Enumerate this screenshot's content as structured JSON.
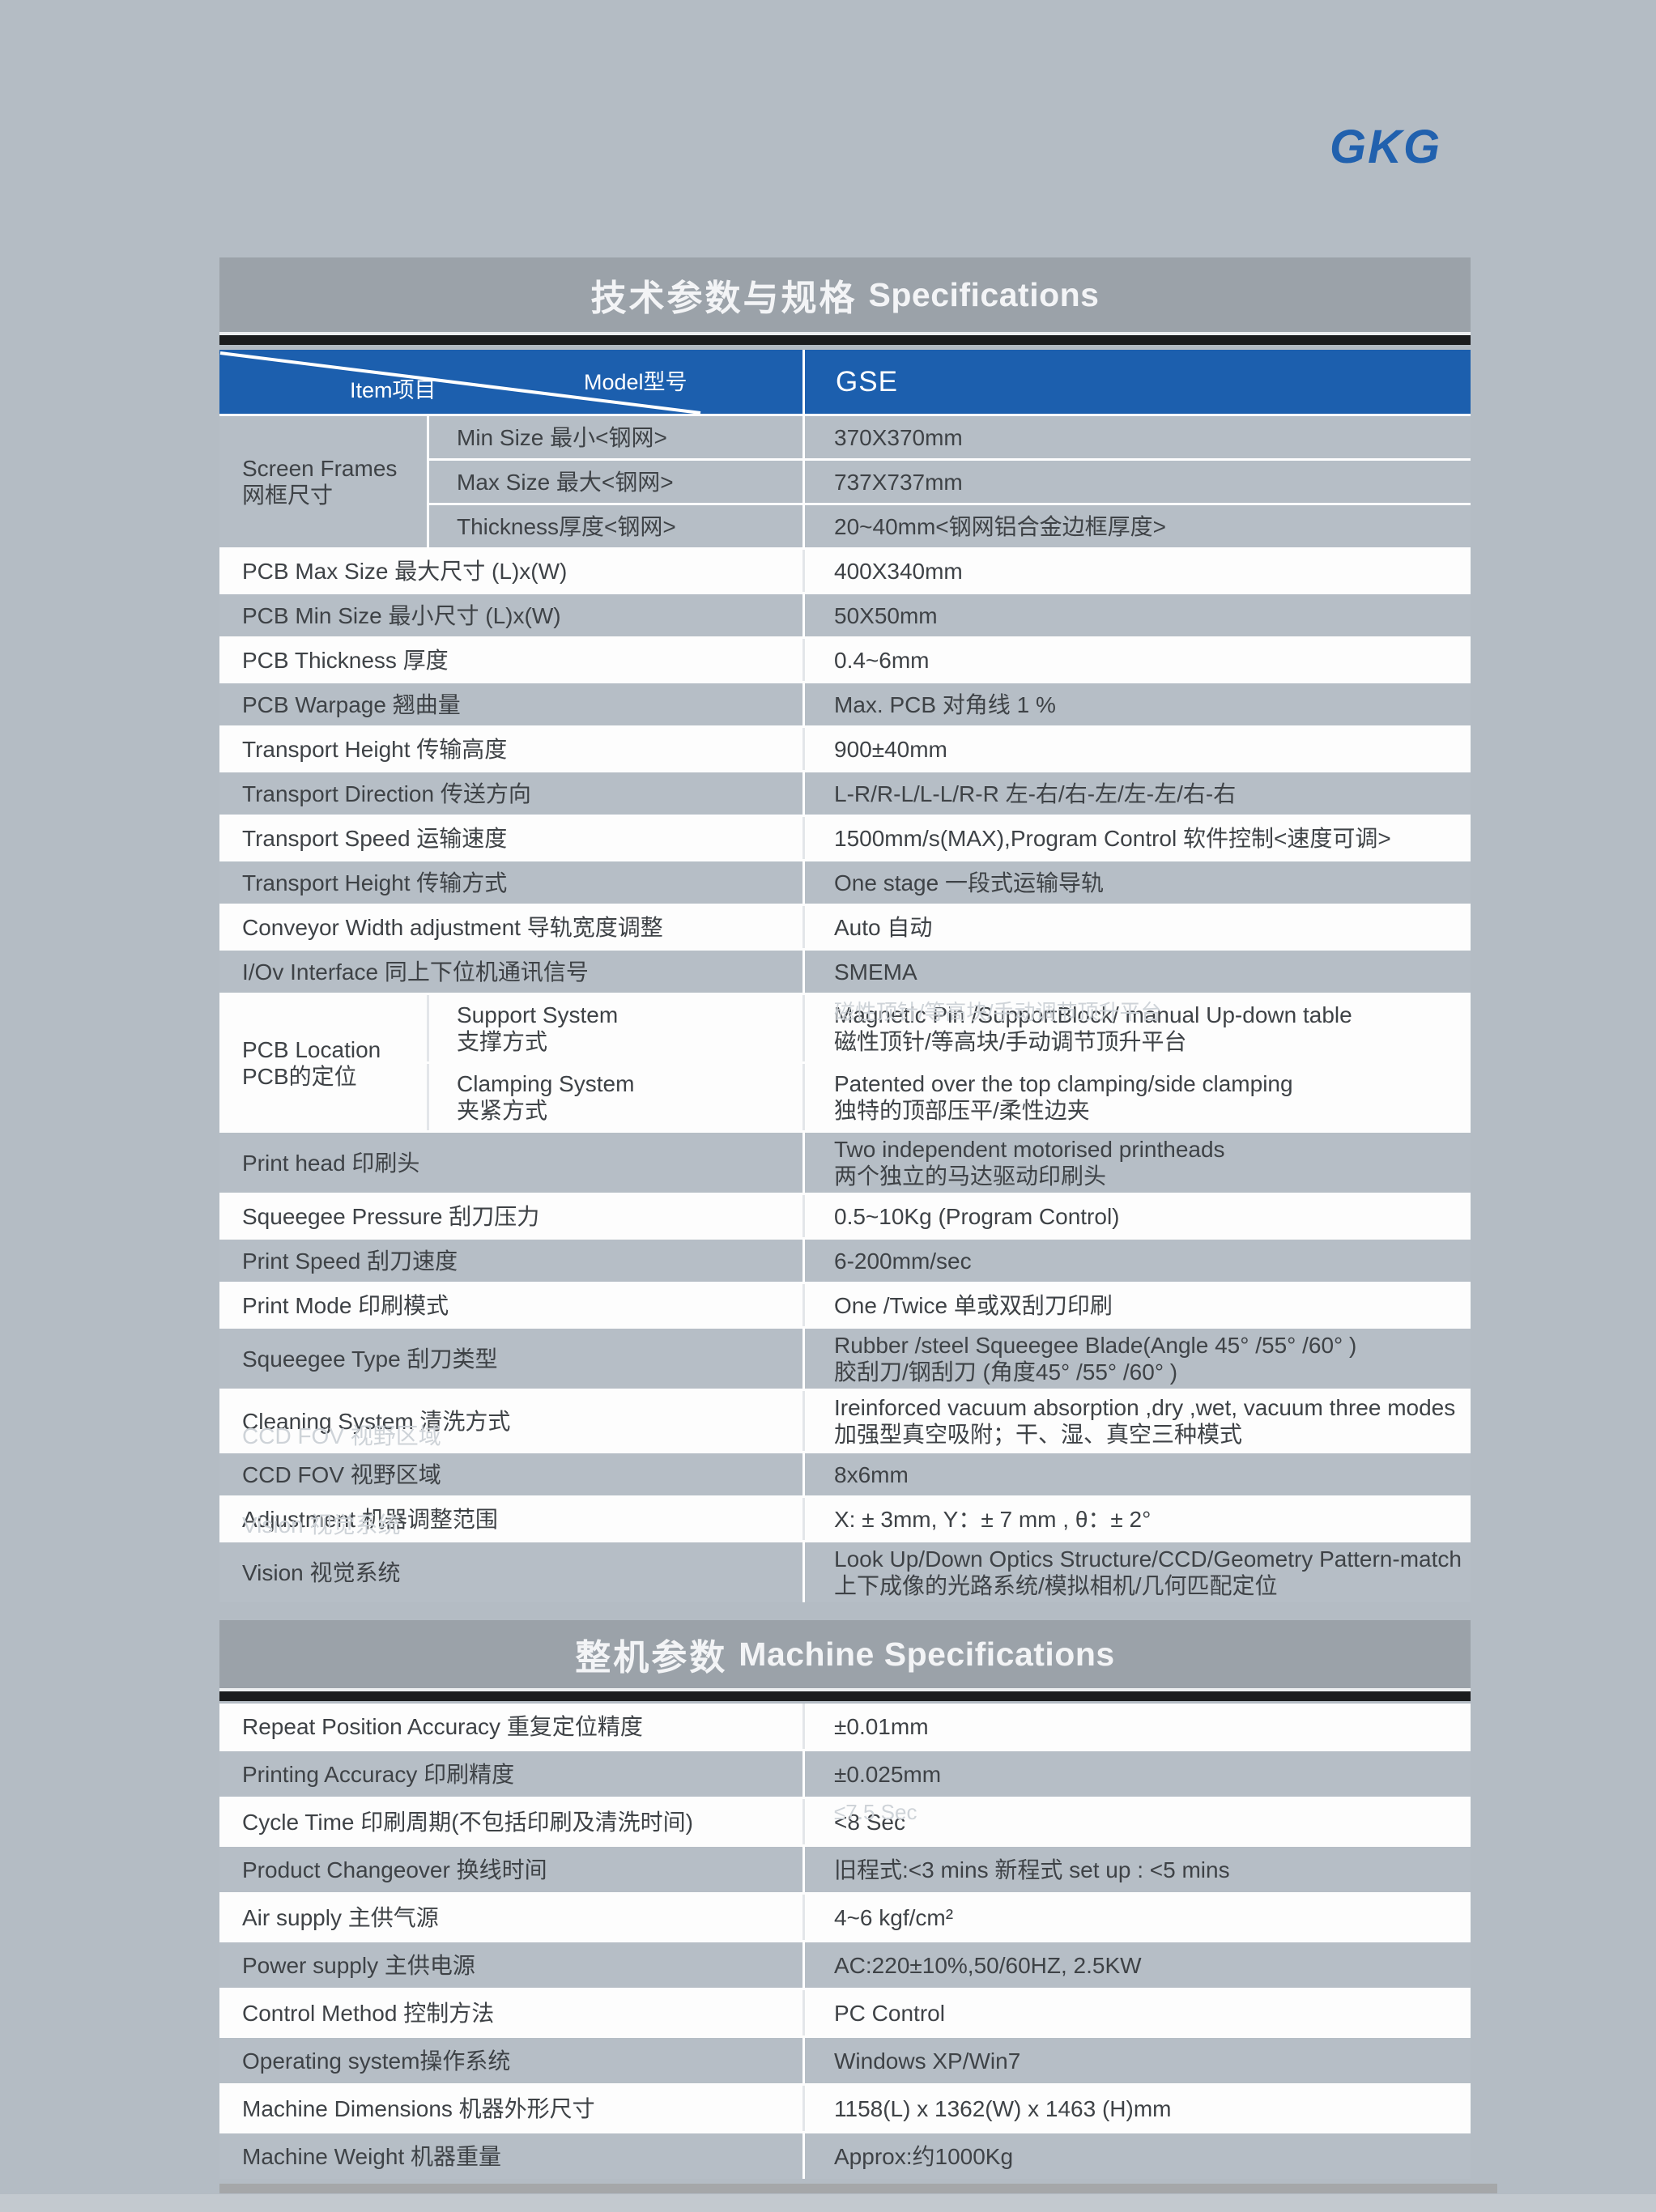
{
  "logo_text": "GKG",
  "colors": {
    "brand_blue": "#2161ae",
    "header_blue": "#1c5fae",
    "bar_gray": "#9ba2a9",
    "black_stripe": "#1b1c1e",
    "page_bg": "#b4bcc4",
    "row_gray": "#b6bec6",
    "row_white": "#fdfdfd"
  },
  "sections": [
    {
      "title_zh": "技术参数与规格",
      "title_en": "Specifications",
      "header": {
        "model_label": "Model型号",
        "item_label": "Item项目",
        "model_value": "GSE"
      },
      "rows": [
        {
          "kind": "group",
          "shade": "gray",
          "label": [
            "Screen Frames",
            "网框尺寸"
          ],
          "subrows": [
            {
              "label": [
                "Min Size 最小<钢网>"
              ],
              "value": [
                "370X370mm"
              ]
            },
            {
              "label": [
                "Max Size 最大<钢网>"
              ],
              "value": [
                "737X737mm"
              ]
            },
            {
              "label": [
                "Thickness厚度<钢网>"
              ],
              "value": [
                "20~40mm<钢网铝合金边框厚度>"
              ]
            }
          ]
        },
        {
          "kind": "simple",
          "shade": "white",
          "label": [
            "PCB Max Size 最大尺寸  (L)x(W)"
          ],
          "value": [
            "400X340mm"
          ]
        },
        {
          "kind": "simple",
          "shade": "gray",
          "label": [
            "PCB Min Size 最小尺寸  (L)x(W)"
          ],
          "value": [
            "50X50mm"
          ]
        },
        {
          "kind": "simple",
          "shade": "white",
          "label": [
            "PCB Thickness 厚度"
          ],
          "value": [
            "0.4~6mm"
          ]
        },
        {
          "kind": "simple",
          "shade": "gray",
          "label": [
            "PCB Warpage 翘曲量"
          ],
          "value": [
            "Max. PCB 对角线 1 %"
          ]
        },
        {
          "kind": "simple",
          "shade": "white",
          "label": [
            "Transport Height  传输高度"
          ],
          "value": [
            "900±40mm"
          ]
        },
        {
          "kind": "simple",
          "shade": "gray",
          "label": [
            "Transport Direction 传送方向"
          ],
          "value": [
            "L-R/R-L/L-L/R-R  左-右/右-左/左-左/右-右"
          ]
        },
        {
          "kind": "simple",
          "shade": "white",
          "label": [
            "Transport Speed 运输速度"
          ],
          "value": [
            "1500mm/s(MAX),Program Control 软件控制<速度可调>"
          ]
        },
        {
          "kind": "simple",
          "shade": "gray",
          "label": [
            "Transport Height  传输方式"
          ],
          "value": [
            "One stage 一段式运输导轨"
          ]
        },
        {
          "kind": "simple",
          "shade": "white",
          "label": [
            "Conveyor Width adjustment 导轨宽度调整"
          ],
          "value": [
            "Auto 自动"
          ]
        },
        {
          "kind": "simple",
          "shade": "gray",
          "label": [
            "I/Ov Interface  同上下位机通讯信号"
          ],
          "value": [
            "SMEMA"
          ]
        },
        {
          "kind": "group",
          "shade": "white",
          "label": [
            "PCB Location",
            "PCB的定位"
          ],
          "subrows": [
            {
              "label": [
                "Support System",
                "支撑方式"
              ],
              "value": [
                "Magnetic Pin /SupportBlock/ manual Up-down table",
                "磁性顶针/等高块/手动调节顶升平台"
              ],
              "value_ghost": "磁性顶针/等高块/手动调节顶升平台"
            },
            {
              "label": [
                "Clamping System",
                "夹紧方式"
              ],
              "value": [
                "Patented over the top clamping/side clamping",
                "独特的顶部压平/柔性边夹"
              ]
            }
          ]
        },
        {
          "kind": "simple",
          "shade": "gray",
          "label": [
            "Print head  印刷头"
          ],
          "value": [
            "Two independent motorised  printheads",
            "两个独立的马达驱动印刷头"
          ]
        },
        {
          "kind": "simple",
          "shade": "white",
          "label": [
            "Squeegee Pressure 刮刀压力"
          ],
          "value": [
            "0.5~10Kg (Program Control)"
          ]
        },
        {
          "kind": "simple",
          "shade": "gray",
          "label": [
            "Print Speed 刮刀速度"
          ],
          "value": [
            "6-200mm/sec"
          ]
        },
        {
          "kind": "simple",
          "shade": "white",
          "label": [
            "Print Mode 印刷模式"
          ],
          "value": [
            "One /Twice 单或双刮刀印刷"
          ]
        },
        {
          "kind": "simple",
          "shade": "gray",
          "label": [
            "Squeegee Type 刮刀类型"
          ],
          "value": [
            "Rubber /steel Squeegee Blade(Angle 45°  /55°  /60°  )",
            "胶刮刀/钢刮刀 (角度45°  /55°  /60°  )"
          ]
        },
        {
          "kind": "simple",
          "shade": "white",
          "label": [
            "Cleaning System 清洗方式"
          ],
          "label_ghost": "CCD FOV 视野区域",
          "value": [
            "Ireinforced vacuum absorption ,dry ,wet, vacuum three modes",
            "加强型真空吸附；干、湿、真空三种模式"
          ]
        },
        {
          "kind": "simple",
          "shade": "gray",
          "label": [
            "CCD FOV 视野区域"
          ],
          "value": [
            "8x6mm"
          ]
        },
        {
          "kind": "simple",
          "shade": "white",
          "label": [
            "Adjustment 机器调整范围"
          ],
          "label_ghost": "Vision 视觉系统",
          "value": [
            "X: ± 3mm, Y：± 7 mm ,  θ：± 2°"
          ]
        },
        {
          "kind": "simple",
          "shade": "gray",
          "label": [
            "Vision 视觉系统"
          ],
          "value": [
            "Look Up/Down Optics Structure/CCD/Geometry Pattern-match",
            "上下成像的光路系统/模拟相机/几何匹配定位"
          ]
        }
      ]
    },
    {
      "title_zh": "整机参数",
      "title_en": "Machine Specifications",
      "rows": [
        {
          "kind": "simple",
          "shade": "white",
          "label": [
            "Repeat Position Accuracy 重复定位精度"
          ],
          "value": [
            "±0.01mm"
          ]
        },
        {
          "kind": "simple",
          "shade": "gray",
          "label": [
            "Printing Accuracy 印刷精度"
          ],
          "value": [
            "±0.025mm"
          ]
        },
        {
          "kind": "simple",
          "shade": "white",
          "label": [
            "Cycle Time 印刷周期(不包括印刷及清洗时间)"
          ],
          "value": [
            "<8 Sec"
          ],
          "value_ghost": "≤7.5 Sec"
        },
        {
          "kind": "simple",
          "shade": "gray",
          "label": [
            "Product Changeover 换线时间"
          ],
          "value": [
            "旧程式:<3 mins    新程式 set up : <5 mins"
          ]
        },
        {
          "kind": "simple",
          "shade": "white",
          "label": [
            "Air supply 主供气源"
          ],
          "value": [
            "4~6 kgf/cm²"
          ]
        },
        {
          "kind": "simple",
          "shade": "gray",
          "label": [
            "Power supply 主供电源"
          ],
          "value": [
            "AC:220±10%,50/60HZ, 2.5KW"
          ]
        },
        {
          "kind": "simple",
          "shade": "white",
          "label": [
            "Control Method 控制方法"
          ],
          "value": [
            "PC Control"
          ]
        },
        {
          "kind": "simple",
          "shade": "gray",
          "label": [
            "Operating system操作系统"
          ],
          "value": [
            "Windows XP/Win7"
          ]
        },
        {
          "kind": "simple",
          "shade": "white",
          "label": [
            "Machine Dimensions 机器外形尺寸"
          ],
          "value": [
            "1158(L) x 1362(W) x 1463 (H)mm"
          ]
        },
        {
          "kind": "simple",
          "shade": "gray",
          "label": [
            "Machine Weight 机器重量"
          ],
          "value": [
            "Approx:约1000Kg"
          ]
        }
      ]
    }
  ]
}
